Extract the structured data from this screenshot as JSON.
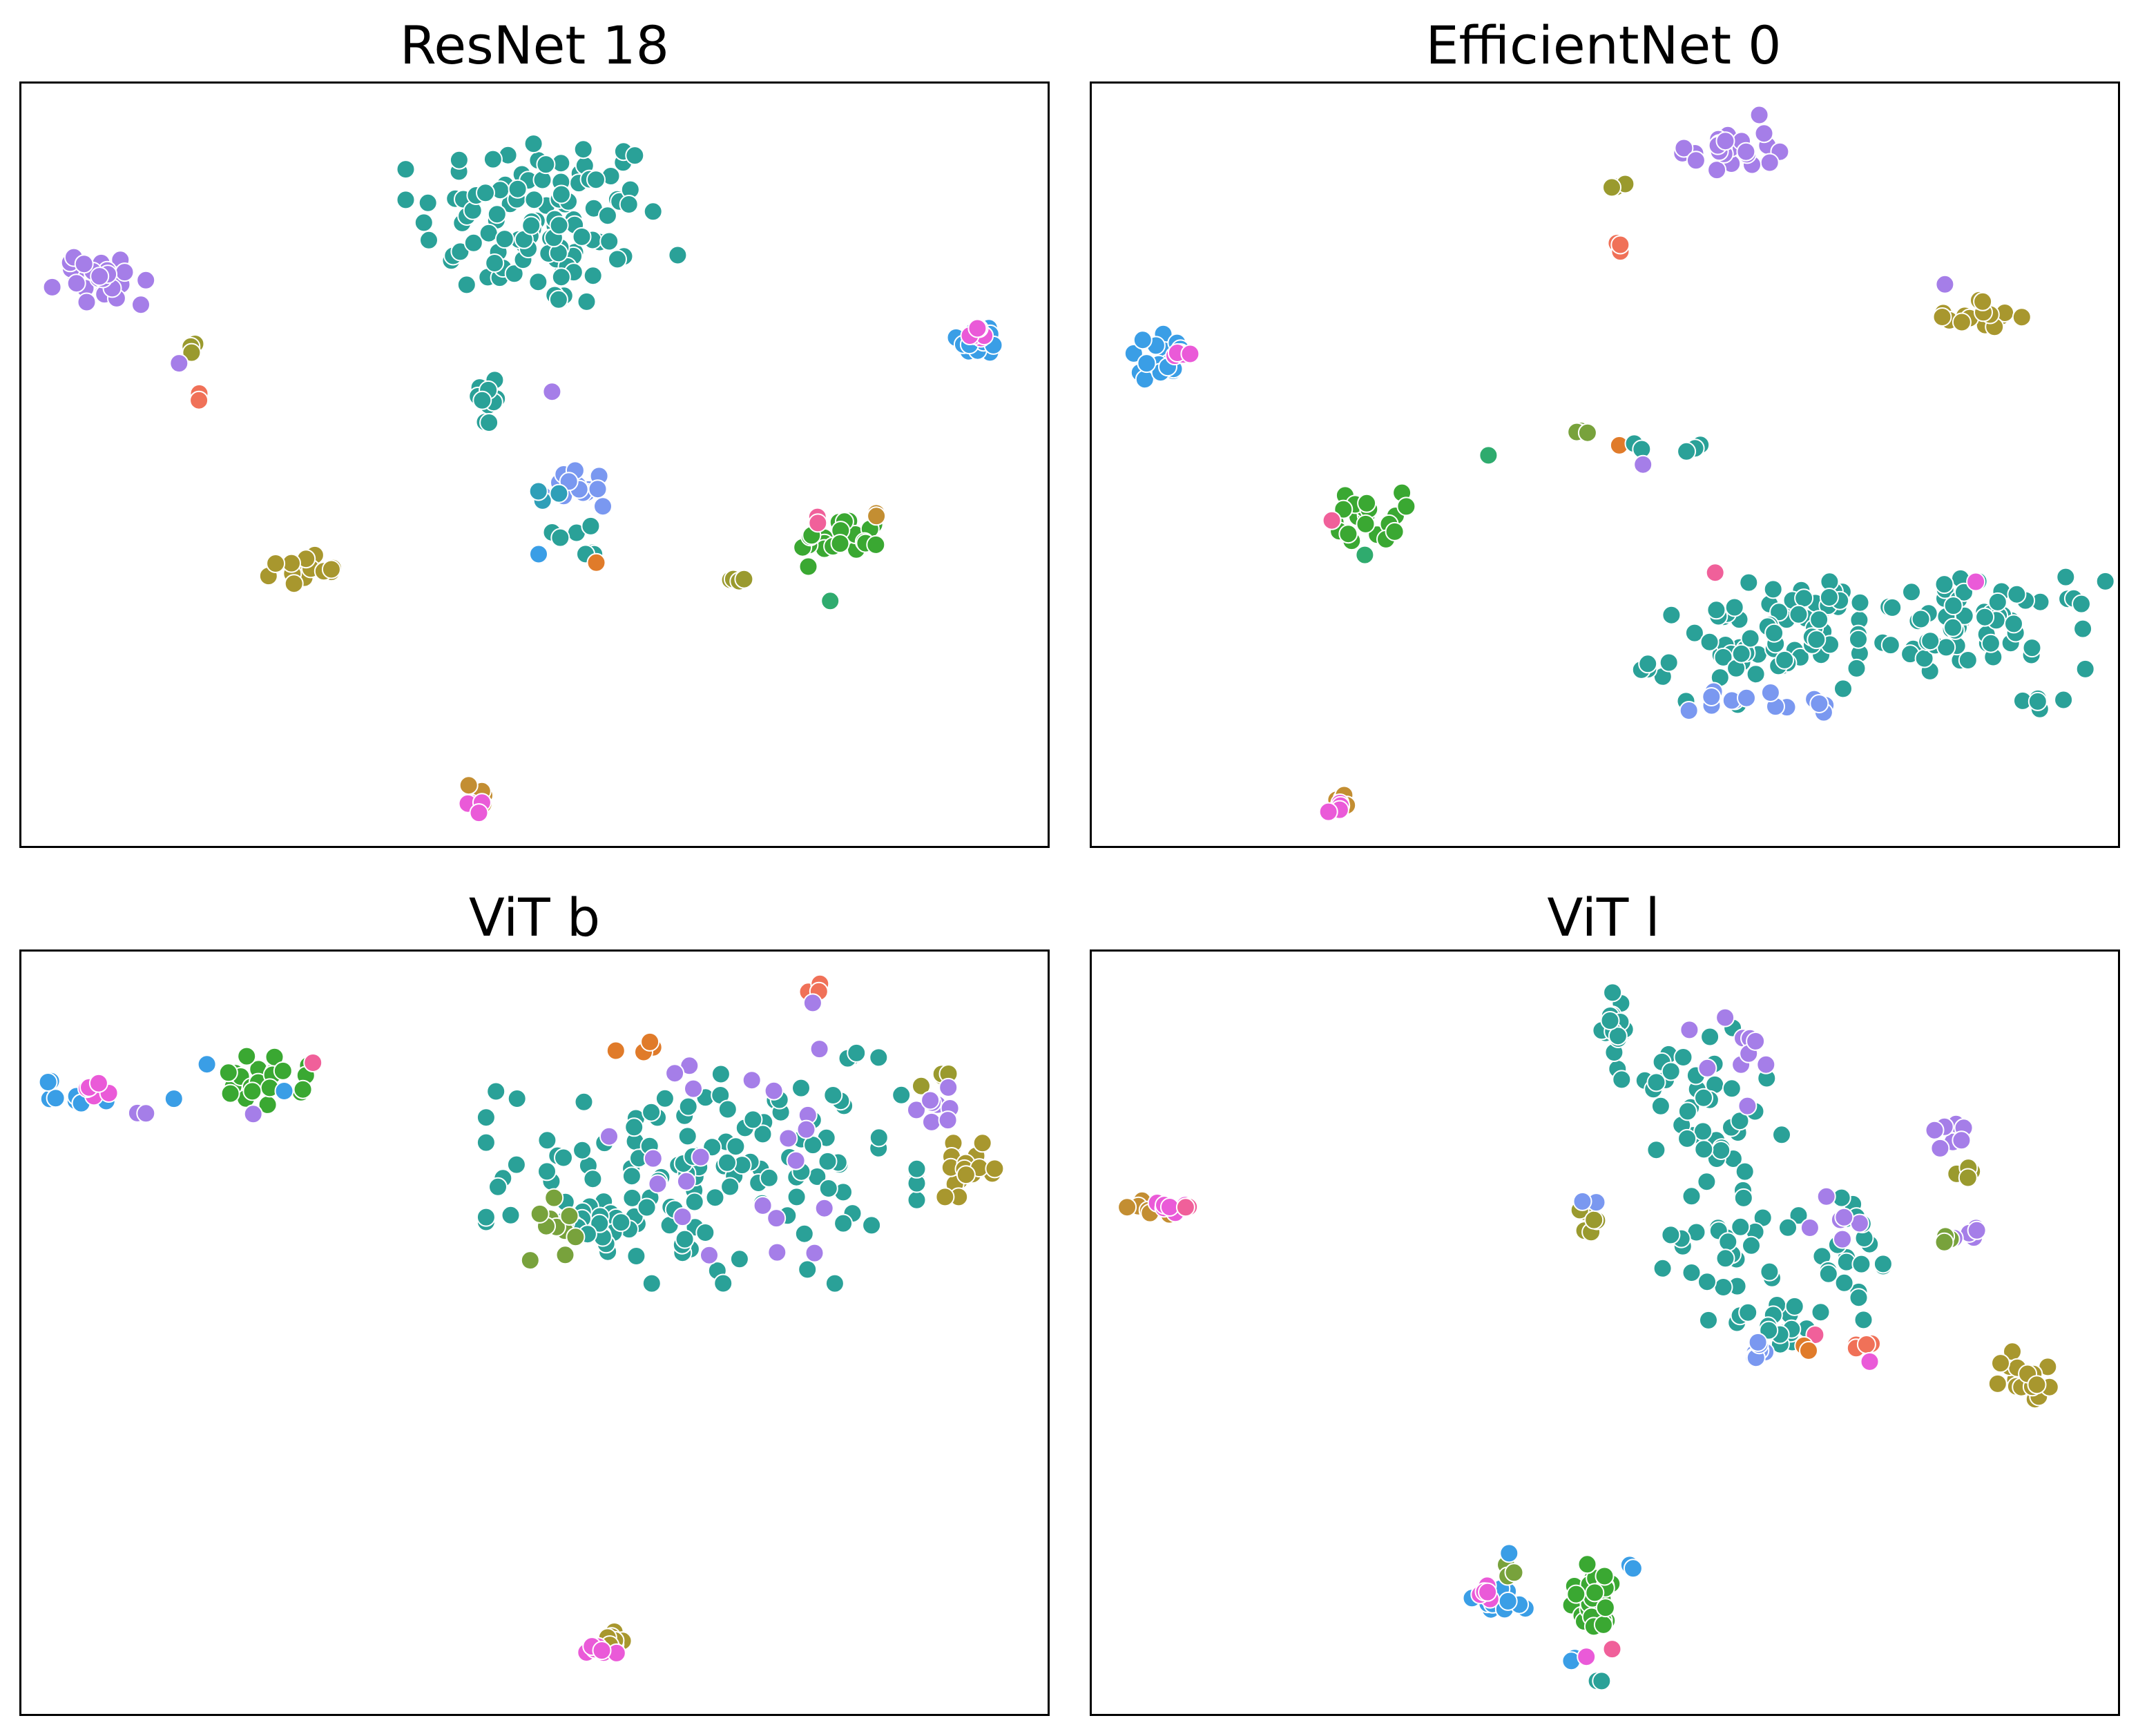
{
  "palette": {
    "teal": "#2aa198",
    "lavender": "#a57ee8",
    "olive": "#9a9a2e",
    "salmon": "#f07158",
    "pink": "#ea5ad8",
    "blue": "#3a9ee6",
    "green": "#3aa832",
    "periwinkle": "#7a98f0",
    "orange": "#e07b2a",
    "khaki": "#a8972e",
    "ochre": "#c38e32",
    "mint": "#2fab6e",
    "rose": "#f0609a",
    "cyan": "#2f9fb8",
    "oliveGreen": "#78a23c"
  },
  "chart_data": [
    {
      "type": "scatter",
      "title": "ResNet  18",
      "xlabel": "",
      "ylabel": "",
      "xlim": [
        0,
        100
      ],
      "ylim": [
        0,
        100
      ],
      "grid": false,
      "legend": "none",
      "clusters": [
        {
          "color": "teal",
          "cx": 50.5,
          "cy": 82,
          "sx": 6,
          "sy": 6,
          "n": 110
        },
        {
          "color": "lavender",
          "cx": 7.5,
          "cy": 74.5,
          "sx": 2.4,
          "sy": 2.2,
          "n": 28,
          "rot": -0.75
        },
        {
          "color": "olive",
          "cx": 16.7,
          "cy": 65.5,
          "sx": 0.5,
          "sy": 0.5,
          "n": 3
        },
        {
          "color": "lavender",
          "cx": 15.3,
          "cy": 63.5,
          "sx": 0.1,
          "sy": 0.1,
          "n": 1
        },
        {
          "color": "salmon",
          "cx": 17,
          "cy": 59.2,
          "sx": 0.3,
          "sy": 0.3,
          "n": 2
        },
        {
          "color": "blue",
          "cx": 93.3,
          "cy": 66.5,
          "sx": 1.2,
          "sy": 1.2,
          "n": 14
        },
        {
          "color": "pink",
          "cx": 92.6,
          "cy": 67.2,
          "sx": 0.6,
          "sy": 0.6,
          "n": 6
        },
        {
          "color": "teal",
          "cx": 45.3,
          "cy": 58.5,
          "sx": 0.6,
          "sy": 2.0,
          "n": 10
        },
        {
          "color": "lavender",
          "cx": 51.5,
          "cy": 59.8,
          "sx": 0.1,
          "sy": 0.1,
          "n": 1
        },
        {
          "color": "periwinkle",
          "cx": 54.5,
          "cy": 47.5,
          "sx": 2.0,
          "sy": 1.2,
          "n": 14,
          "rot": -0.4
        },
        {
          "color": "cyan",
          "cx": 51.5,
          "cy": 46.3,
          "sx": 0.6,
          "sy": 0.5,
          "n": 3
        },
        {
          "color": "teal",
          "cx": 53.3,
          "cy": 41.5,
          "sx": 1.2,
          "sy": 0.6,
          "n": 4
        },
        {
          "color": "teal",
          "cx": 55.5,
          "cy": 38.5,
          "sx": 0.5,
          "sy": 0.4,
          "n": 3
        },
        {
          "color": "orange",
          "cx": 55.8,
          "cy": 37.5,
          "sx": 0.1,
          "sy": 0.1,
          "n": 1
        },
        {
          "color": "blue",
          "cx": 50.2,
          "cy": 38.6,
          "sx": 0.1,
          "sy": 0.1,
          "n": 1
        },
        {
          "color": "green",
          "cx": 79.5,
          "cy": 40.5,
          "sx": 2.0,
          "sy": 1.6,
          "n": 24
        },
        {
          "color": "rose",
          "cx": 77,
          "cy": 42.8,
          "sx": 0.3,
          "sy": 0.3,
          "n": 2
        },
        {
          "color": "ochre",
          "cx": 82.8,
          "cy": 43.2,
          "sx": 0.4,
          "sy": 0.4,
          "n": 2
        },
        {
          "color": "mint",
          "cx": 78.5,
          "cy": 32.5,
          "sx": 0.1,
          "sy": 0.1,
          "n": 1
        },
        {
          "color": "olive",
          "cx": 69.5,
          "cy": 35.5,
          "sx": 0.6,
          "sy": 0.5,
          "n": 4
        },
        {
          "color": "khaki",
          "cx": 27.5,
          "cy": 36.5,
          "sx": 1.6,
          "sy": 0.9,
          "n": 16
        },
        {
          "color": "ochre",
          "cx": 44.5,
          "cy": 7.5,
          "sx": 0.5,
          "sy": 0.8,
          "n": 4
        },
        {
          "color": "pink",
          "cx": 43.8,
          "cy": 5.5,
          "sx": 0.5,
          "sy": 0.6,
          "n": 4
        }
      ]
    },
    {
      "type": "scatter",
      "title": "EfficientNet 0",
      "xlabel": "",
      "ylabel": "",
      "xlim": [
        0,
        100
      ],
      "ylim": [
        0,
        100
      ],
      "grid": false,
      "legend": "none",
      "clusters": [
        {
          "color": "lavender",
          "cx": 61.5,
          "cy": 91.5,
          "sx": 2.4,
          "sy": 2.0,
          "n": 24
        },
        {
          "color": "olive",
          "cx": 51.5,
          "cy": 86.5,
          "sx": 0.5,
          "sy": 0.4,
          "n": 3
        },
        {
          "color": "salmon",
          "cx": 51.5,
          "cy": 79.5,
          "sx": 0.3,
          "sy": 0.9,
          "n": 3
        },
        {
          "color": "khaki",
          "cx": 86.5,
          "cy": 69.5,
          "sx": 1.8,
          "sy": 1.2,
          "n": 16
        },
        {
          "color": "lavender",
          "cx": 82.8,
          "cy": 73.8,
          "sx": 0.1,
          "sy": 0.1,
          "n": 1
        },
        {
          "color": "blue",
          "cx": 6.5,
          "cy": 64.5,
          "sx": 1.8,
          "sy": 1.4,
          "n": 18
        },
        {
          "color": "pink",
          "cx": 9,
          "cy": 65,
          "sx": 0.7,
          "sy": 0.7,
          "n": 5
        },
        {
          "color": "mint",
          "cx": 38.5,
          "cy": 51.5,
          "sx": 0.1,
          "sy": 0.1,
          "n": 1
        },
        {
          "color": "oliveGreen",
          "cx": 47.5,
          "cy": 54.5,
          "sx": 0.6,
          "sy": 0.5,
          "n": 4
        },
        {
          "color": "orange",
          "cx": 51.2,
          "cy": 52.8,
          "sx": 0.1,
          "sy": 0.1,
          "n": 1
        },
        {
          "color": "teal",
          "cx": 53,
          "cy": 52.3,
          "sx": 0.4,
          "sy": 0.4,
          "n": 2
        },
        {
          "color": "lavender",
          "cx": 53.5,
          "cy": 50.3,
          "sx": 0.1,
          "sy": 0.1,
          "n": 1
        },
        {
          "color": "teal",
          "cx": 58.5,
          "cy": 52.3,
          "sx": 1.0,
          "sy": 0.4,
          "n": 3
        },
        {
          "color": "green",
          "cx": 27,
          "cy": 43.5,
          "sx": 1.6,
          "sy": 1.6,
          "n": 22
        },
        {
          "color": "rose",
          "cx": 23.3,
          "cy": 43,
          "sx": 0.1,
          "sy": 0.1,
          "n": 1
        },
        {
          "color": "mint",
          "cx": 26.5,
          "cy": 38.5,
          "sx": 0.1,
          "sy": 0.1,
          "n": 1
        },
        {
          "color": "rose",
          "cx": 60.5,
          "cy": 36.2,
          "sx": 0.1,
          "sy": 0.1,
          "n": 1
        },
        {
          "color": "teal",
          "cx": 66,
          "cy": 27.5,
          "sx": 6.0,
          "sy": 3.5,
          "n": 80,
          "rot": 0.2
        },
        {
          "color": "teal",
          "cx": 86.5,
          "cy": 29.5,
          "sx": 5.5,
          "sy": 2.8,
          "n": 60
        },
        {
          "color": "periwinkle",
          "cx": 66,
          "cy": 19,
          "sx": 5.5,
          "sy": 1.2,
          "n": 14
        },
        {
          "color": "teal",
          "cx": 92,
          "cy": 19.5,
          "sx": 1.2,
          "sy": 0.5,
          "n": 5
        },
        {
          "color": "pink",
          "cx": 85.8,
          "cy": 35,
          "sx": 0.1,
          "sy": 0.1,
          "n": 1
        },
        {
          "color": "ochre",
          "cx": 24.5,
          "cy": 6.5,
          "sx": 0.6,
          "sy": 0.6,
          "n": 4
        },
        {
          "color": "pink",
          "cx": 24,
          "cy": 5.5,
          "sx": 0.5,
          "sy": 0.5,
          "n": 4
        }
      ]
    },
    {
      "type": "scatter",
      "title": "ViT b",
      "xlabel": "",
      "ylabel": "",
      "xlim": [
        0,
        100
      ],
      "ylim": [
        0,
        100
      ],
      "grid": false,
      "legend": "none",
      "clusters": [
        {
          "color": "blue",
          "cx": 5.5,
          "cy": 81.5,
          "sx": 1.6,
          "sy": 0.9,
          "n": 14
        },
        {
          "color": "pink",
          "cx": 7.8,
          "cy": 82.3,
          "sx": 0.8,
          "sy": 0.7,
          "n": 6
        },
        {
          "color": "lavender",
          "cx": 11.8,
          "cy": 78.5,
          "sx": 0.4,
          "sy": 0.4,
          "n": 2
        },
        {
          "color": "blue",
          "cx": 14.8,
          "cy": 80.8,
          "sx": 0.1,
          "sy": 0.1,
          "n": 1
        },
        {
          "color": "blue",
          "cx": 18,
          "cy": 85.3,
          "sx": 0.1,
          "sy": 0.1,
          "n": 1
        },
        {
          "color": "green",
          "cx": 23,
          "cy": 83,
          "sx": 2.2,
          "sy": 1.6,
          "n": 24
        },
        {
          "color": "rose",
          "cx": 28.3,
          "cy": 85.5,
          "sx": 0.1,
          "sy": 0.1,
          "n": 1
        },
        {
          "color": "blue",
          "cx": 25.5,
          "cy": 81.8,
          "sx": 0.1,
          "sy": 0.1,
          "n": 1
        },
        {
          "color": "lavender",
          "cx": 22.5,
          "cy": 78.8,
          "sx": 0.1,
          "sy": 0.1,
          "n": 1
        },
        {
          "color": "salmon",
          "cx": 77,
          "cy": 95.5,
          "sx": 0.3,
          "sy": 0.4,
          "n": 3
        },
        {
          "color": "lavender",
          "cx": 76.8,
          "cy": 93.3,
          "sx": 0.1,
          "sy": 0.1,
          "n": 1
        },
        {
          "color": "teal",
          "cx": 66,
          "cy": 71,
          "sx": 9.5,
          "sy": 6.5,
          "n": 130
        },
        {
          "color": "teal",
          "cx": 55.5,
          "cy": 64,
          "sx": 2.5,
          "sy": 1.4,
          "n": 18
        },
        {
          "color": "lavender",
          "cx": 70,
          "cy": 72,
          "sx": 10,
          "sy": 7,
          "n": 22
        },
        {
          "color": "orange",
          "cx": 60,
          "cy": 87.5,
          "sx": 3,
          "sy": 1.0,
          "n": 4
        },
        {
          "color": "oliveGreen",
          "cx": 51.5,
          "cy": 65,
          "sx": 1.2,
          "sy": 2.5,
          "n": 10
        },
        {
          "color": "olive",
          "cx": 89,
          "cy": 84,
          "sx": 0.8,
          "sy": 0.8,
          "n": 5
        },
        {
          "color": "lavender",
          "cx": 89.5,
          "cy": 80,
          "sx": 1.2,
          "sy": 1.4,
          "n": 8
        },
        {
          "color": "khaki",
          "cx": 92,
          "cy": 71.5,
          "sx": 1.5,
          "sy": 1.6,
          "n": 18
        },
        {
          "color": "teal",
          "cx": 81,
          "cy": 86.5,
          "sx": 1.0,
          "sy": 0.5,
          "n": 4
        },
        {
          "color": "khaki",
          "cx": 56.8,
          "cy": 9.5,
          "sx": 0.8,
          "sy": 0.8,
          "n": 8
        },
        {
          "color": "pink",
          "cx": 56,
          "cy": 8.5,
          "sx": 0.8,
          "sy": 0.6,
          "n": 8
        }
      ]
    },
    {
      "type": "scatter",
      "title": "ViT l",
      "xlabel": "",
      "ylabel": "",
      "xlim": [
        0,
        100
      ],
      "ylim": [
        0,
        100
      ],
      "grid": false,
      "legend": "none",
      "clusters": [
        {
          "color": "ochre",
          "cx": 6,
          "cy": 67,
          "sx": 1.2,
          "sy": 0.8,
          "n": 8
        },
        {
          "color": "pink",
          "cx": 7.5,
          "cy": 66.5,
          "sx": 0.9,
          "sy": 0.6,
          "n": 7
        },
        {
          "color": "rose",
          "cx": 9,
          "cy": 66.2,
          "sx": 0.4,
          "sy": 0.4,
          "n": 2
        },
        {
          "color": "olive",
          "cx": 48.5,
          "cy": 64.5,
          "sx": 1.0,
          "sy": 1.0,
          "n": 6
        },
        {
          "color": "periwinkle",
          "cx": 48.5,
          "cy": 67,
          "sx": 0.4,
          "sy": 0.4,
          "n": 2
        },
        {
          "color": "teal",
          "cx": 50.5,
          "cy": 91,
          "sx": 1.0,
          "sy": 3.5,
          "n": 18
        },
        {
          "color": "teal",
          "cx": 54.5,
          "cy": 83,
          "sx": 1.2,
          "sy": 0.6,
          "n": 4
        },
        {
          "color": "teal",
          "cx": 60,
          "cy": 80,
          "sx": 2.5,
          "sy": 5.5,
          "n": 36
        },
        {
          "color": "teal",
          "cx": 62,
          "cy": 64,
          "sx": 3.0,
          "sy": 5.5,
          "n": 30
        },
        {
          "color": "lavender",
          "cx": 63.5,
          "cy": 84.5,
          "sx": 2.5,
          "sy": 4,
          "n": 10
        },
        {
          "color": "teal",
          "cx": 66.5,
          "cy": 51.5,
          "sx": 2.2,
          "sy": 1.6,
          "n": 16
        },
        {
          "color": "periwinkle",
          "cx": 64.5,
          "cy": 48.5,
          "sx": 0.8,
          "sy": 1.2,
          "n": 8
        },
        {
          "color": "teal",
          "cx": 73.5,
          "cy": 60,
          "sx": 1.5,
          "sy": 4.5,
          "n": 22
        },
        {
          "color": "lavender",
          "cx": 73,
          "cy": 64.5,
          "sx": 1.5,
          "sy": 2.5,
          "n": 6
        },
        {
          "color": "salmon",
          "cx": 75.5,
          "cy": 48.5,
          "sx": 0.6,
          "sy": 0.8,
          "n": 4
        },
        {
          "color": "pink",
          "cx": 75.5,
          "cy": 46.5,
          "sx": 0.1,
          "sy": 0.1,
          "n": 1
        },
        {
          "color": "rose",
          "cx": 70.2,
          "cy": 50,
          "sx": 0.1,
          "sy": 0.1,
          "n": 1
        },
        {
          "color": "orange",
          "cx": 69,
          "cy": 48.5,
          "sx": 0.4,
          "sy": 0.3,
          "n": 2
        },
        {
          "color": "lavender",
          "cx": 84,
          "cy": 75,
          "sx": 1.0,
          "sy": 1.5,
          "n": 7
        },
        {
          "color": "olive",
          "cx": 84.5,
          "cy": 71,
          "sx": 0.8,
          "sy": 0.8,
          "n": 5
        },
        {
          "color": "lavender",
          "cx": 84,
          "cy": 63.5,
          "sx": 1.4,
          "sy": 1.0,
          "n": 6
        },
        {
          "color": "oliveGreen",
          "cx": 83.5,
          "cy": 62.3,
          "sx": 0.8,
          "sy": 0.4,
          "n": 3
        },
        {
          "color": "khaki",
          "cx": 91,
          "cy": 44.5,
          "sx": 1.4,
          "sy": 1.6,
          "n": 16
        },
        {
          "color": "blue",
          "cx": 39.5,
          "cy": 15,
          "sx": 2.0,
          "sy": 1.4,
          "n": 14
        },
        {
          "color": "pink",
          "cx": 38,
          "cy": 16.5,
          "sx": 0.6,
          "sy": 0.6,
          "n": 5
        },
        {
          "color": "oliveGreen",
          "cx": 40.5,
          "cy": 19,
          "sx": 0.6,
          "sy": 0.5,
          "n": 3
        },
        {
          "color": "blue",
          "cx": 40.5,
          "cy": 21.5,
          "sx": 0.2,
          "sy": 0.2,
          "n": 1
        },
        {
          "color": "green",
          "cx": 49,
          "cy": 15.5,
          "sx": 1.5,
          "sy": 2.2,
          "n": 26
        },
        {
          "color": "blue",
          "cx": 52.5,
          "cy": 19.5,
          "sx": 0.3,
          "sy": 0.3,
          "n": 2
        },
        {
          "color": "blue",
          "cx": 47.2,
          "cy": 7.5,
          "sx": 0.3,
          "sy": 0.3,
          "n": 2
        },
        {
          "color": "pink",
          "cx": 48,
          "cy": 8,
          "sx": 0.1,
          "sy": 0.1,
          "n": 1
        },
        {
          "color": "rose",
          "cx": 50.5,
          "cy": 9,
          "sx": 0.1,
          "sy": 0.1,
          "n": 1
        },
        {
          "color": "teal",
          "cx": 49,
          "cy": 5,
          "sx": 0.3,
          "sy": 0.2,
          "n": 2
        }
      ]
    }
  ]
}
